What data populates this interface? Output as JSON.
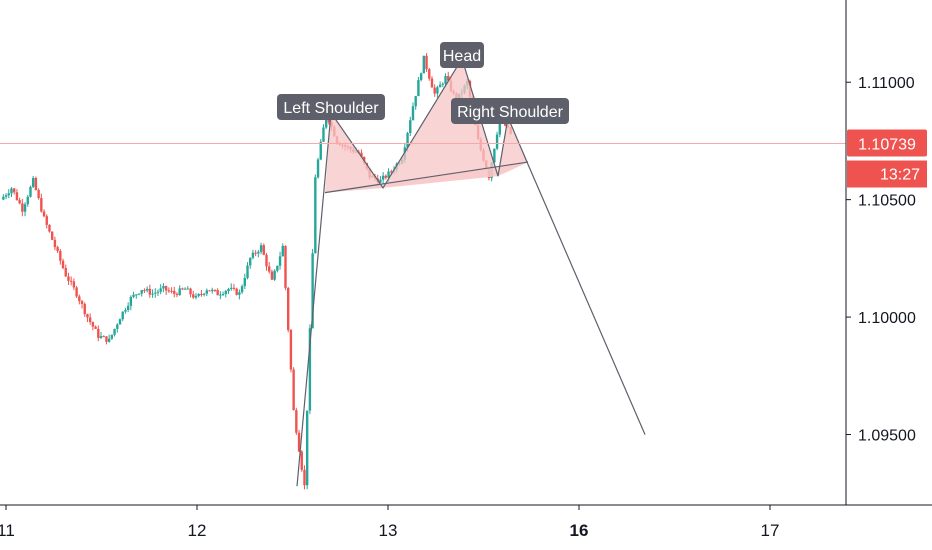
{
  "chart_data": {
    "type": "candlestick",
    "y_axis": {
      "ticks": [
        1.095,
        1.1,
        1.105,
        1.11
      ],
      "tick_labels": [
        "1.09500",
        "1.10000",
        "1.10500",
        "1.11000"
      ],
      "ylim": [
        1.092,
        1.1135
      ]
    },
    "x_axis": {
      "ticks": [
        {
          "label": "11",
          "bold": false
        },
        {
          "label": "12",
          "bold": false
        },
        {
          "label": "13",
          "bold": false
        },
        {
          "label": "16",
          "bold": true
        },
        {
          "label": "17",
          "bold": false
        }
      ]
    },
    "current_price": {
      "value": 1.10739,
      "label": "1.10739",
      "countdown": "13:27"
    },
    "pattern": {
      "labels": {
        "left_shoulder": "Left Shoulder",
        "head": "Head",
        "right_shoulder": "Right Shoulder"
      },
      "price_path": [
        1.0928,
        1.1087,
        1.1055,
        1.111,
        1.106,
        1.1085,
        1.1065
      ],
      "target_price": 1.095
    },
    "price_close_path": [
      1.105,
      1.1055,
      1.1046,
      1.1058,
      1.1042,
      1.103,
      1.1018,
      1.101,
      1.1,
      1.0992,
      1.099,
      1.1,
      1.1008,
      1.1012,
      1.101,
      1.1012,
      1.101,
      1.1012,
      1.1008,
      1.1012,
      1.101,
      1.1012,
      1.101,
      1.1025,
      1.103,
      1.1015,
      1.103,
      1.096,
      1.0928,
      1.106,
      1.1087,
      1.1075,
      1.1072,
      1.107,
      1.106,
      1.1058,
      1.1062,
      1.1068,
      1.109,
      1.111,
      1.1095,
      1.1102,
      1.1092,
      1.11,
      1.1075,
      1.106,
      1.1085,
      1.1078
    ],
    "colors": {
      "up": "#26a69a",
      "down": "#ef5350",
      "pattern_fill": "#f7c5c7",
      "pattern_stroke": "#5d606b",
      "price_line": "#f7a8a8"
    }
  }
}
